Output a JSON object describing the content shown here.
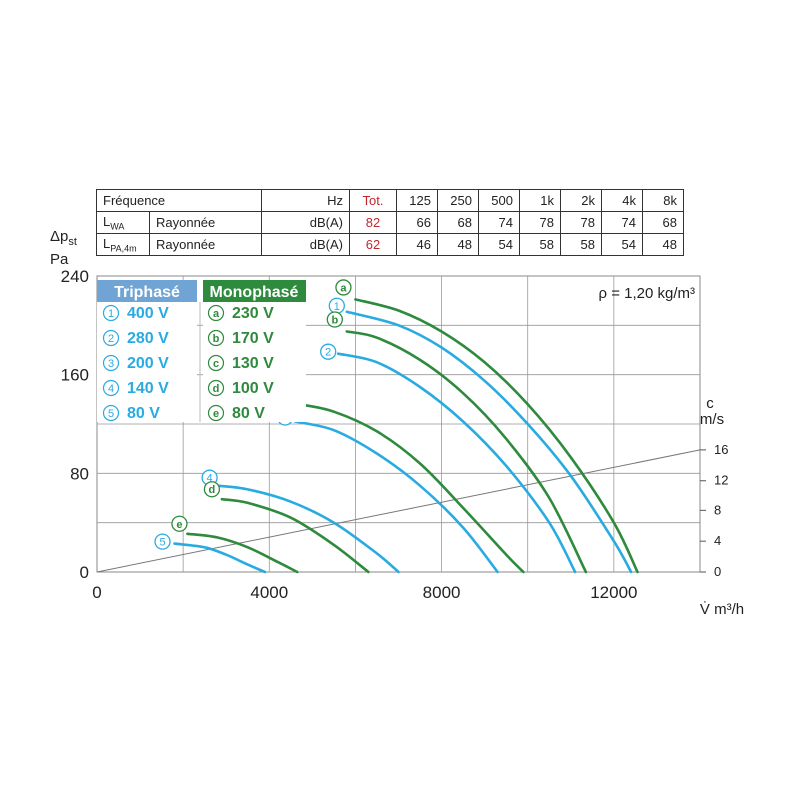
{
  "table": {
    "header": [
      "Fréquence",
      "Hz",
      "Tot.",
      "125",
      "250",
      "500",
      "1k",
      "2k",
      "4k",
      "8k"
    ],
    "rows": [
      {
        "label_main": "L",
        "label_sub": "WA",
        "type": "Rayonnée",
        "unit": "dB(A)",
        "tot": "82",
        "values": [
          "66",
          "68",
          "74",
          "78",
          "78",
          "74",
          "68"
        ]
      },
      {
        "label_main": "L",
        "label_sub": "PA,4m",
        "type": "Rayonnée",
        "unit": "dB(A)",
        "tot": "62",
        "values": [
          "46",
          "48",
          "54",
          "58",
          "58",
          "54",
          "48"
        ]
      }
    ]
  },
  "y_axis_label_top": "Δp",
  "y_axis_label_sub": "st",
  "y_axis_label_unit": "Pa",
  "x_axis_label": "V̇ m³/h",
  "density_label": "ρ = 1,20 kg/m³",
  "velocity_axis": {
    "label_top": "c",
    "label_unit": "m/s",
    "ticks": [
      "0",
      "4",
      "8",
      "12",
      "16"
    ]
  },
  "legend": {
    "triphase": {
      "title": "Triphasé",
      "color": "#6fa4d4",
      "items": [
        {
          "mark": "①",
          "label": "400 V"
        },
        {
          "mark": "②",
          "label": "280 V"
        },
        {
          "mark": "③",
          "label": "200 V"
        },
        {
          "mark": "④",
          "label": "140 V"
        },
        {
          "mark": "⑤",
          "label": " 80 V"
        }
      ]
    },
    "monophase": {
      "title": "Monophasé",
      "color": "#2e8a3c",
      "items": [
        {
          "mark": "a",
          "label": "230 V"
        },
        {
          "mark": "b",
          "label": "170 V"
        },
        {
          "mark": "c",
          "label": "130 V"
        },
        {
          "mark": "d",
          "label": "100 V"
        },
        {
          "mark": "e",
          "label": " 80 V"
        }
      ]
    }
  },
  "colors": {
    "blue": "#29abe2",
    "green": "#2e8a3c",
    "grid": "#999999",
    "tot_red": "#c0272d"
  },
  "chart_data": {
    "type": "line",
    "xlabel": "V̇ m³/h",
    "ylabel": "Δpst Pa",
    "xlim": [
      0,
      14000
    ],
    "ylim": [
      0,
      240
    ],
    "x_ticks": [
      0,
      4000,
      8000,
      12000
    ],
    "y_ticks": [
      0,
      80,
      160,
      240
    ],
    "grid": true,
    "series": [
      {
        "name": "①",
        "color": "blue",
        "x": [
          5800,
          7000,
          8000,
          9000,
          10000,
          11000,
          12000,
          12400
        ],
        "y": [
          211,
          200,
          182,
          155,
          120,
          78,
          25,
          0
        ]
      },
      {
        "name": "②",
        "color": "blue",
        "x": [
          5600,
          6500,
          7500,
          8500,
          9500,
          10500,
          11100
        ],
        "y": [
          177,
          170,
          150,
          122,
          86,
          40,
          0
        ]
      },
      {
        "name": "③",
        "color": "blue",
        "x": [
          4600,
          5500,
          6500,
          7500,
          8500,
          9300
        ],
        "y": [
          122,
          115,
          96,
          70,
          36,
          0
        ]
      },
      {
        "name": "④",
        "color": "blue",
        "x": [
          2800,
          3500,
          4500,
          5500,
          6500,
          7000
        ],
        "y": [
          70,
          67,
          57,
          40,
          15,
          0
        ]
      },
      {
        "name": "⑤",
        "color": "blue",
        "x": [
          1800,
          2500,
          3000,
          3500,
          3900
        ],
        "y": [
          23,
          20,
          14,
          6,
          0
        ]
      },
      {
        "name": "a",
        "color": "green",
        "x": [
          6000,
          7000,
          8000,
          9000,
          10000,
          11000,
          12000,
          12550
        ],
        "y": [
          221,
          212,
          195,
          170,
          136,
          93,
          40,
          0
        ]
      },
      {
        "name": "b",
        "color": "green",
        "x": [
          5800,
          6500,
          7500,
          8500,
          9500,
          10500,
          11350
        ],
        "y": [
          195,
          190,
          172,
          145,
          108,
          60,
          0
        ]
      },
      {
        "name": "c",
        "color": "green",
        "x": [
          4700,
          5500,
          6500,
          7500,
          8500,
          9500,
          9900
        ],
        "y": [
          136,
          130,
          114,
          88,
          52,
          14,
          0
        ]
      },
      {
        "name": "d",
        "color": "green",
        "x": [
          2900,
          3500,
          4500,
          5500,
          6300
        ],
        "y": [
          59,
          56,
          44,
          22,
          0
        ]
      },
      {
        "name": "e",
        "color": "green",
        "x": [
          2100,
          2800,
          3500,
          4200,
          4650
        ],
        "y": [
          31,
          28,
          20,
          8,
          0
        ]
      }
    ],
    "velocity_line": {
      "x": [
        0,
        14000
      ],
      "y": [
        0,
        99
      ]
    },
    "velocity_scale": {
      "c": [
        0,
        4,
        8,
        12,
        16
      ],
      "y": [
        0,
        25,
        50,
        74,
        99
      ]
    }
  }
}
